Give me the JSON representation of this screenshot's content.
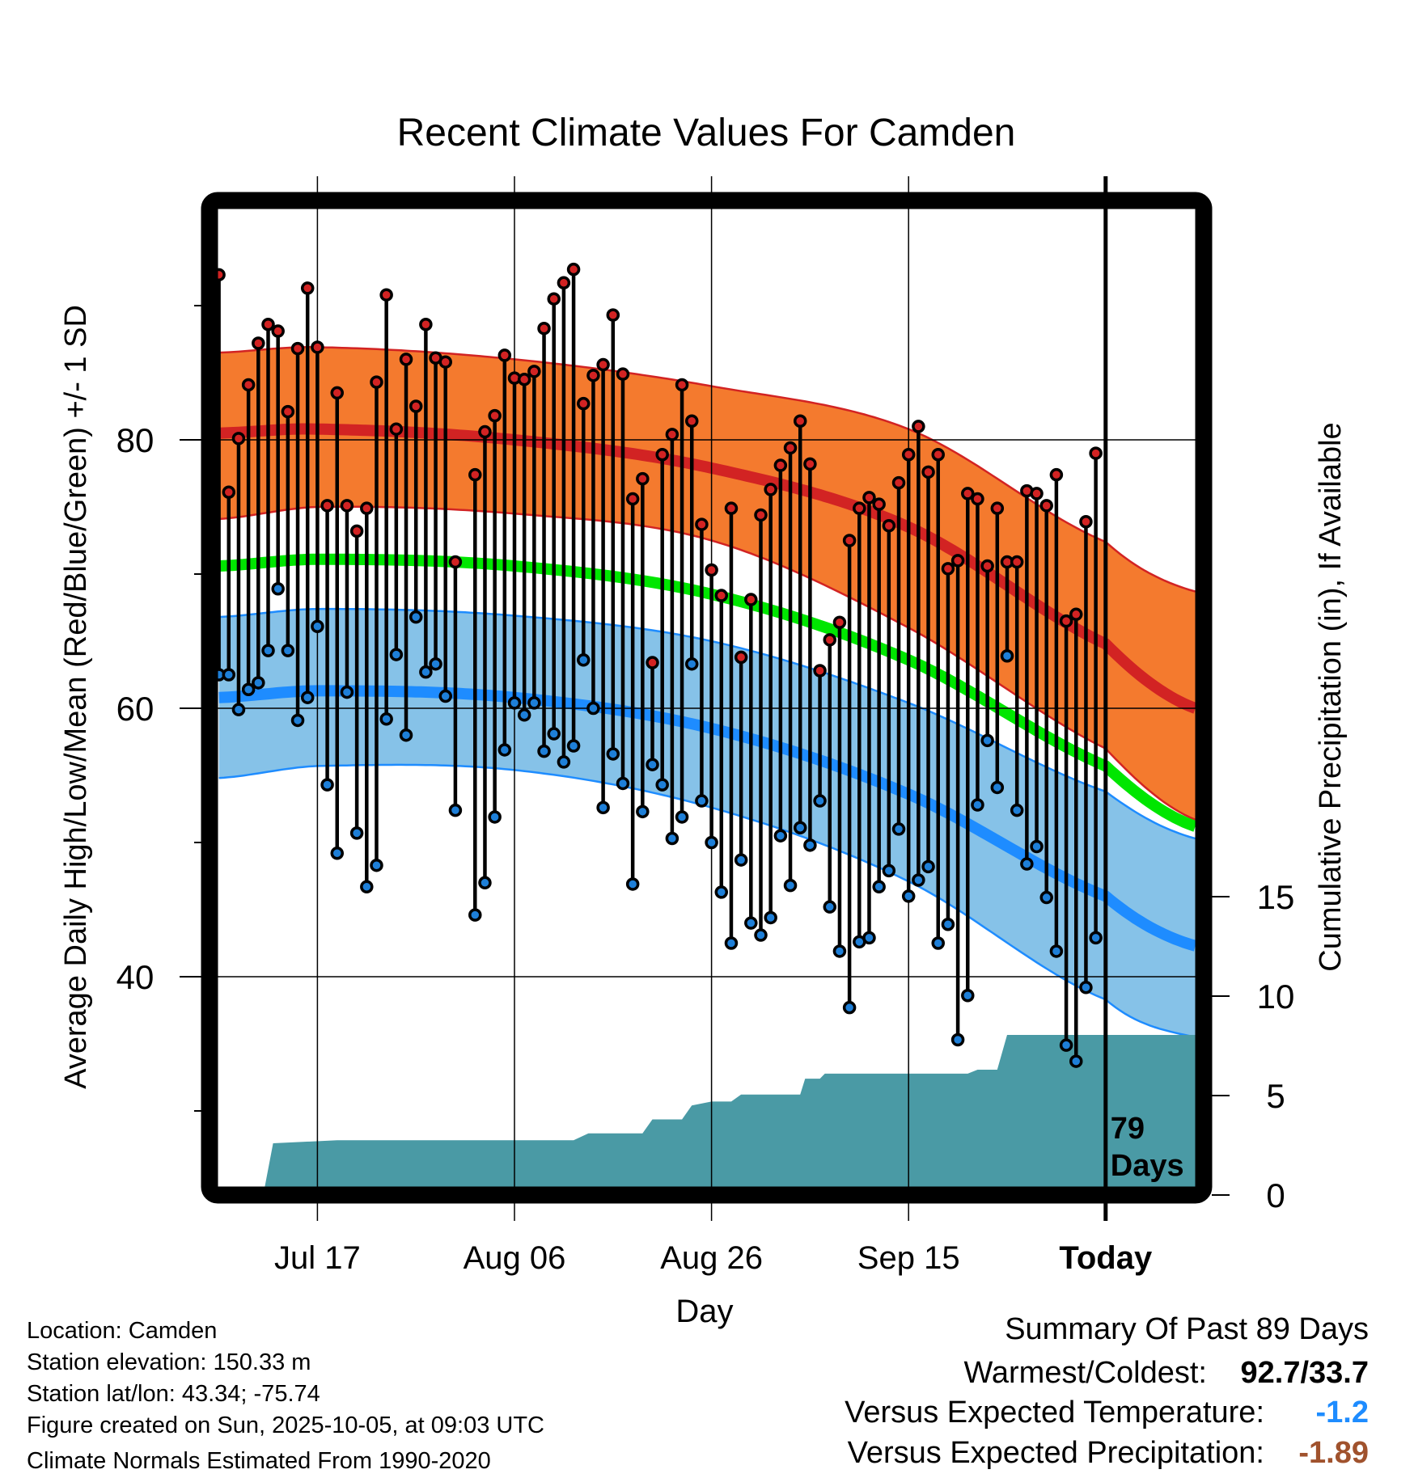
{
  "chart_data": {
    "type": "line",
    "title": "Recent Climate Values For Camden",
    "xlabel": "Day",
    "ylabel": "Average Daily High/Low/Mean (Red/Blue/Green) +/- 1 SD",
    "y2label": "Cumulative Precipitation (in), If Available",
    "ylim": [
      24.3,
      97.1
    ],
    "xlim_days": [
      0,
      99.1
    ],
    "y_ticks": [
      {
        "value": 80,
        "label": "80"
      },
      {
        "value": 60,
        "label": "60"
      },
      {
        "value": 40,
        "label": "40"
      }
    ],
    "y_minor_ticks": [
      90,
      70,
      50,
      30
    ],
    "y2_ticks": [
      {
        "value": 15,
        "label": "15"
      },
      {
        "value": 10,
        "label": "10"
      },
      {
        "value": 5,
        "label": "5"
      },
      {
        "value": 0,
        "label": "0"
      }
    ],
    "x_ticks": [
      {
        "day": 10,
        "label": "Jul 17"
      },
      {
        "day": 30,
        "label": "Aug 06"
      },
      {
        "day": 50,
        "label": "Aug 26"
      },
      {
        "day": 70,
        "label": "Sep 15"
      },
      {
        "day": 90,
        "label": "Today"
      }
    ],
    "today_day": 90,
    "today_annotation": [
      "79",
      "Days"
    ],
    "daily_high": [
      92.3,
      76.1,
      80.1,
      84.1,
      87.2,
      88.6,
      88.1,
      82.1,
      86.8,
      91.3,
      86.9,
      75.1,
      83.5,
      75.1,
      73.2,
      74.9,
      84.3,
      90.8,
      80.8,
      86.0,
      82.5,
      88.6,
      86.1,
      85.8,
      70.9,
      null,
      77.4,
      80.6,
      81.8,
      86.3,
      84.6,
      84.5,
      85.1,
      88.3,
      90.5,
      91.7,
      92.7,
      82.7,
      84.8,
      85.6,
      89.3,
      84.9,
      75.6,
      77.1,
      63.4,
      78.9,
      80.4,
      84.1,
      81.4,
      73.7,
      70.3,
      68.4,
      74.9,
      63.8,
      68.1,
      74.4,
      76.3,
      78.1,
      79.4,
      81.4,
      78.2,
      62.8,
      65.1,
      66.4,
      72.5,
      74.9,
      75.7,
      75.2,
      73.6,
      76.8,
      78.9,
      81.0,
      77.6,
      78.9,
      70.4,
      71.0,
      76.0,
      75.6,
      70.6,
      74.9,
      70.9,
      70.9,
      76.2,
      76.0,
      75.1,
      77.4,
      66.5,
      67.0,
      73.9,
      79.0
    ],
    "daily_low": [
      62.5,
      62.5,
      59.9,
      61.4,
      61.9,
      64.3,
      68.9,
      64.3,
      59.1,
      60.8,
      66.1,
      54.3,
      49.2,
      61.2,
      50.7,
      46.7,
      48.3,
      59.2,
      64.0,
      58.0,
      66.8,
      62.7,
      63.3,
      60.9,
      52.4,
      null,
      44.6,
      47.0,
      51.9,
      56.9,
      60.4,
      59.5,
      60.4,
      56.8,
      58.1,
      56.0,
      57.2,
      63.6,
      60.0,
      52.6,
      56.6,
      54.4,
      46.9,
      52.3,
      55.8,
      54.3,
      50.3,
      51.9,
      63.3,
      53.1,
      50.0,
      46.3,
      42.5,
      48.7,
      44.0,
      43.1,
      44.4,
      50.5,
      46.8,
      51.1,
      49.8,
      53.1,
      45.2,
      41.9,
      37.7,
      42.6,
      42.9,
      46.7,
      47.9,
      51.0,
      46.0,
      47.2,
      48.2,
      42.5,
      43.9,
      35.3,
      38.6,
      52.8,
      57.6,
      54.1,
      63.9,
      52.4,
      48.4,
      49.7,
      45.9,
      41.9,
      34.9,
      33.7,
      39.2,
      42.9
    ],
    "normals": {
      "days": [
        0,
        10,
        30,
        50,
        70,
        90,
        99.1
      ],
      "high_upper": [
        86.5,
        86.9,
        86.0,
        84.0,
        80.8,
        72.4,
        68.7
      ],
      "high_mean": [
        80.5,
        80.8,
        80.0,
        77.9,
        73.5,
        64.8,
        60.0
      ],
      "high_lower": [
        74.1,
        75.0,
        74.5,
        72.5,
        66.0,
        57.0,
        51.7
      ],
      "avg_mean": [
        70.6,
        71.1,
        70.6,
        68.5,
        63.6,
        55.7,
        51.2
      ],
      "low_upper": [
        66.8,
        67.4,
        66.9,
        65.0,
        60.4,
        53.8,
        50.3
      ],
      "low_mean": [
        60.8,
        61.3,
        60.8,
        58.5,
        53.6,
        46.0,
        42.3
      ],
      "low_lower": [
        54.8,
        55.7,
        55.4,
        52.6,
        47.1,
        38.3,
        35.5
      ]
    },
    "cumulative_precip": [
      [
        0,
        0
      ],
      [
        4.5,
        0
      ],
      [
        5.5,
        2.6
      ],
      [
        12,
        2.75
      ],
      [
        36,
        2.75
      ],
      [
        37.5,
        3.1
      ],
      [
        43,
        3.1
      ],
      [
        44,
        3.8
      ],
      [
        47,
        3.8
      ],
      [
        48,
        4.5
      ],
      [
        50,
        4.7
      ],
      [
        52,
        4.7
      ],
      [
        53,
        5.05
      ],
      [
        59,
        5.05
      ],
      [
        59.5,
        5.85
      ],
      [
        61,
        5.85
      ],
      [
        61.5,
        6.1
      ],
      [
        76,
        6.1
      ],
      [
        77,
        6.3
      ],
      [
        79,
        6.3
      ],
      [
        80,
        8.05
      ],
      [
        99.1,
        8.05
      ]
    ],
    "colors": {
      "high_band": "#f47a2e",
      "high_line": "#d22323",
      "avg_line": "#00e600",
      "low_band": "#86c2e8",
      "low_line": "#1e8cff",
      "precip": "#4a9aa5",
      "high_point": "#d22323",
      "low_point": "#1e7fd8"
    }
  },
  "info": {
    "location": "Location: Camden",
    "elevation": "Station elevation: 150.33 m",
    "latlon": "Station lat/lon: 43.34; -75.74",
    "created": "Figure created on Sun, 2025-10-05, at 09:03 UTC",
    "normals": "Climate Normals Estimated From 1990-2020"
  },
  "summary": {
    "title": "Summary Of Past 89 Days",
    "warmest_coldest_label": "Warmest/Coldest:",
    "warmest_coldest_value": "92.7/33.7",
    "temp_label": "Versus Expected Temperature:",
    "temp_value": "-1.2",
    "temp_color": "#1e8cff",
    "precip_label": "Versus Expected Precipitation:",
    "precip_value": "-1.89",
    "precip_color": "#a0522d"
  }
}
